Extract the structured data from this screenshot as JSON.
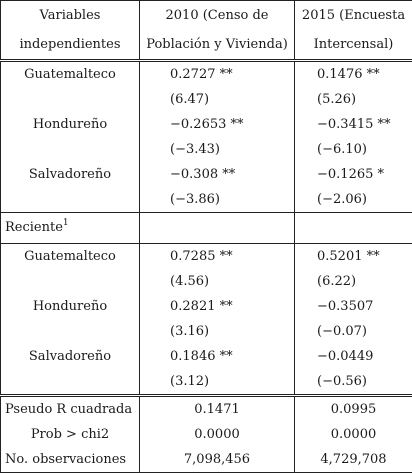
{
  "header": {
    "col1": [
      "Variables",
      "independientes"
    ],
    "col2": [
      "2010 (Censo de",
      "Población y Vivienda)"
    ],
    "col3": [
      "2015 (Encuesta",
      "Intercensal)"
    ]
  },
  "section1": {
    "rows": [
      {
        "label": "Guatemalteco",
        "v2010": "0.2727 **",
        "v2015": "0.1476 **",
        "t2010": "(6.47)",
        "t2015": "(5.26)"
      },
      {
        "label": "Hondureño",
        "v2010": "−0.2653 **",
        "v2015": "−0.3415 **",
        "t2010": "(−3.43)",
        "t2015": "(−6.10)"
      },
      {
        "label": "Salvadoreño",
        "v2010": "−0.308 **",
        "v2015": "−0.1265 *",
        "t2010": "(−3.86)",
        "t2015": "(−2.06)"
      }
    ]
  },
  "section2": {
    "title": "Reciente",
    "title_sup": "1",
    "rows": [
      {
        "label": "Guatemalteco",
        "v2010": "0.7285 **",
        "v2015": "0.5201 **",
        "t2010": "(4.56)",
        "t2015": "(6.22)"
      },
      {
        "label": "Hondureño",
        "v2010": "0.2821 **",
        "v2015": "−0.3507",
        "t2010": "(3.16)",
        "t2015": "(−0.07)"
      },
      {
        "label": "Salvadoreño",
        "v2010": "0.1846 **",
        "v2015": "−0.0449",
        "t2010": "(3.12)",
        "t2015": "(−0.56)"
      }
    ]
  },
  "stats": [
    {
      "label": "Pseudo R cuadrada",
      "v2010": "0.1471",
      "v2015": "0.0995"
    },
    {
      "label": "Prob > chi2",
      "v2010": "0.0000",
      "v2015": "0.0000"
    },
    {
      "label": "No. observaciones",
      "v2010": "7,098,456",
      "v2015": "4,729,708"
    }
  ]
}
